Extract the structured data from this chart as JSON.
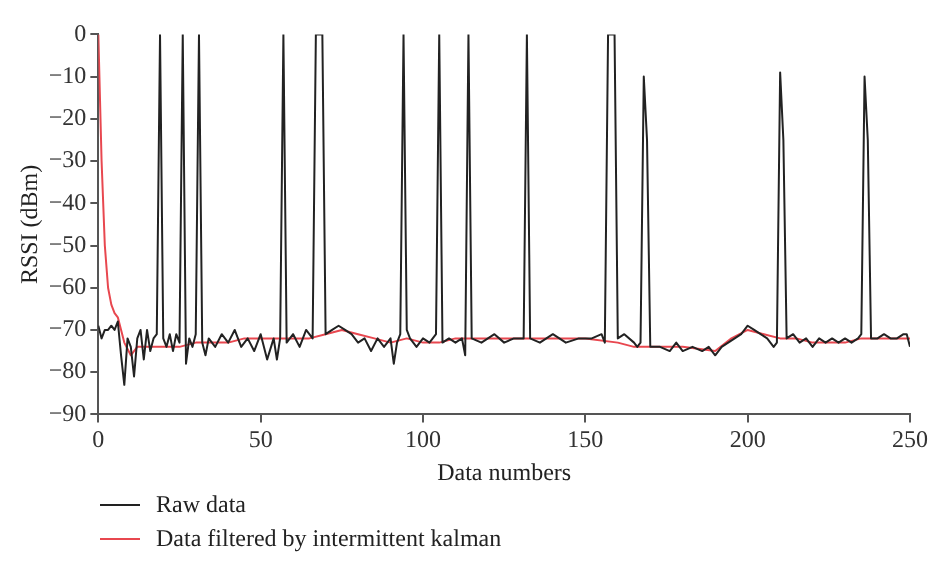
{
  "chart_data": {
    "type": "line",
    "xlabel": "Data numbers",
    "ylabel": "RSSI (dBm)",
    "xlim": [
      0,
      250
    ],
    "xticks": [
      0,
      50,
      100,
      150,
      200,
      250
    ],
    "ylim": [
      -90,
      0
    ],
    "yticks": [
      -90,
      -80,
      -70,
      -60,
      -50,
      -40,
      -30,
      -20,
      -10,
      0
    ],
    "grid": false,
    "legend": "bottom",
    "marker": "none",
    "line_style": "solid",
    "series": [
      {
        "name": "Raw data",
        "color": "#222222",
        "x": [
          0,
          1,
          2,
          3,
          4,
          5,
          6,
          7,
          8,
          9,
          10,
          11,
          12,
          13,
          14,
          15,
          16,
          17,
          18,
          19,
          20,
          21,
          22,
          23,
          24,
          25,
          26,
          27,
          28,
          29,
          30,
          31,
          32,
          33,
          34,
          36,
          38,
          40,
          42,
          44,
          46,
          48,
          50,
          52,
          54,
          55,
          56,
          57,
          58,
          60,
          62,
          64,
          66,
          67,
          69,
          70,
          72,
          74,
          76,
          78,
          80,
          82,
          84,
          86,
          88,
          90,
          91,
          92,
          93,
          94,
          95,
          96,
          98,
          100,
          102,
          104,
          105,
          106,
          108,
          110,
          112,
          113,
          114,
          115,
          118,
          120,
          122,
          125,
          128,
          131,
          132,
          133,
          136,
          140,
          144,
          148,
          152,
          155,
          156,
          157,
          159,
          160,
          162,
          165,
          166,
          167,
          168,
          169,
          170,
          173,
          176,
          178,
          180,
          183,
          186,
          188,
          190,
          192,
          194,
          196,
          198,
          200,
          202,
          204,
          206,
          208,
          209,
          210,
          211,
          212,
          214,
          216,
          218,
          220,
          222,
          224,
          226,
          228,
          230,
          232,
          234,
          235,
          236,
          237,
          238,
          240,
          242,
          244,
          246,
          248,
          249,
          250
        ],
        "values": [
          -69,
          -72,
          -70,
          -70,
          -69,
          -70,
          -68,
          -76,
          -83,
          -72,
          -74,
          -81,
          -72,
          -70,
          -77,
          -70,
          -75,
          -72,
          -71,
          0,
          -72,
          -74,
          -71,
          -75,
          -71,
          -73,
          0,
          -78,
          -72,
          -74,
          -71,
          0,
          -73,
          -76,
          -72,
          -74,
          -71,
          -73,
          -70,
          -74,
          -72,
          -75,
          -71,
          -77,
          -72,
          -77,
          -72,
          0,
          -73,
          -71,
          -74,
          -70,
          -72,
          0,
          0,
          -71,
          -70,
          -69,
          -70,
          -71,
          -73,
          -72,
          -75,
          -72,
          -74,
          -72,
          -78,
          -73,
          -71,
          0,
          -70,
          -72,
          -74,
          -72,
          -73,
          -71,
          0,
          -73,
          -72,
          -73,
          -72,
          -76,
          0,
          -72,
          -73,
          -72,
          -71,
          -73,
          -72,
          -72,
          0,
          -72,
          -73,
          -71,
          -73,
          -72,
          -72,
          -71,
          -73,
          0,
          0,
          -72,
          -71,
          -73,
          -74,
          -73,
          -10,
          -25,
          -74,
          -74,
          -75,
          -73,
          -75,
          -74,
          -75,
          -74,
          -76,
          -74,
          -73,
          -72,
          -71,
          -69,
          -70,
          -71,
          -72,
          -74,
          -73,
          -9,
          -25,
          -72,
          -71,
          -73,
          -72,
          -74,
          -72,
          -73,
          -72,
          -73,
          -72,
          -73,
          -72,
          -71,
          -10,
          -25,
          -72,
          -72,
          -71,
          -72,
          -72,
          -71,
          -71,
          -74
        ]
      },
      {
        "name": "Data filtered by intermittent kalman",
        "color": "#e8474f",
        "x": [
          0,
          1,
          2,
          3,
          4,
          5,
          6,
          8,
          10,
          12,
          15,
          20,
          25,
          30,
          35,
          40,
          45,
          50,
          55,
          60,
          65,
          70,
          75,
          80,
          85,
          90,
          95,
          100,
          105,
          110,
          115,
          120,
          130,
          140,
          150,
          160,
          165,
          170,
          180,
          190,
          195,
          200,
          205,
          210,
          215,
          220,
          225,
          230,
          235,
          240,
          245,
          250
        ],
        "values": [
          0,
          -30,
          -50,
          -60,
          -64,
          -66,
          -67,
          -73,
          -76,
          -74,
          -74,
          -74,
          -74,
          -73,
          -73,
          -73,
          -72,
          -72,
          -72,
          -72,
          -72,
          -71,
          -70,
          -71,
          -72,
          -73,
          -72,
          -73,
          -73,
          -72,
          -72,
          -72,
          -72,
          -72,
          -72,
          -73,
          -74,
          -74,
          -74,
          -75,
          -72,
          -70,
          -71,
          -72,
          -72,
          -73,
          -73,
          -73,
          -72,
          -72,
          -72,
          -72
        ]
      }
    ]
  }
}
